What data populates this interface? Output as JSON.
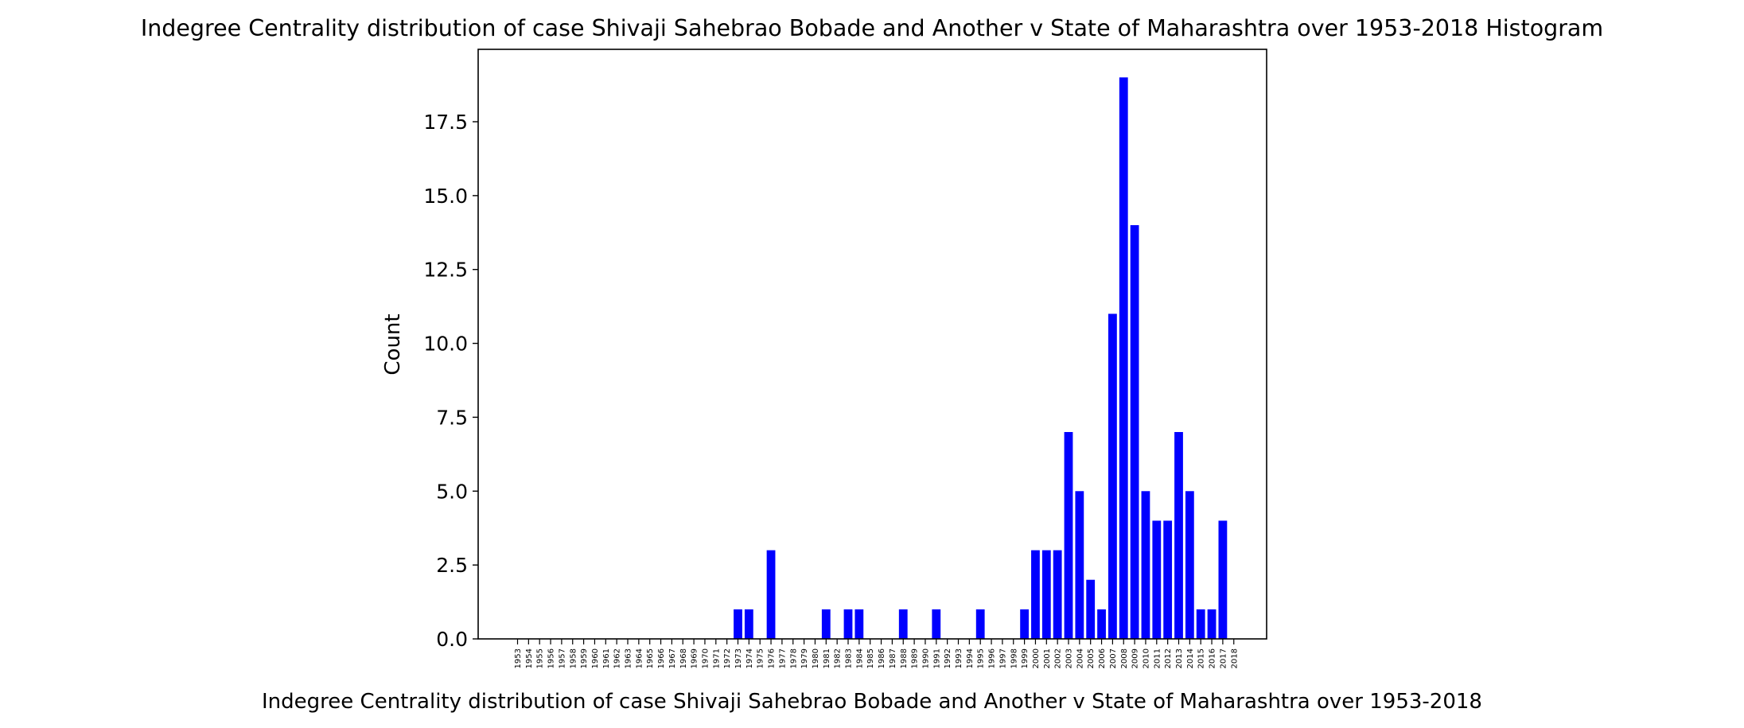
{
  "chart_data": {
    "type": "bar",
    "title": "Indegree Centrality distribution of case Shivaji Sahebrao Bobade and Another v State of Maharashtra over 1953-2018 Histogram",
    "xlabel": "Indegree Centrality distribution of case Shivaji Sahebrao Bobade and Another v State of Maharashtra over 1953-2018",
    "ylabel": "Count",
    "ylim": [
      0,
      19.95
    ],
    "yticks": [
      "0.0",
      "2.5",
      "5.0",
      "7.5",
      "10.0",
      "12.5",
      "15.0",
      "17.5"
    ],
    "grid": false,
    "bar_color": "#0000ff",
    "categories": [
      "1953",
      "1954",
      "1955",
      "1956",
      "1957",
      "1958",
      "1959",
      "1960",
      "1961",
      "1962",
      "1963",
      "1964",
      "1965",
      "1966",
      "1967",
      "1968",
      "1969",
      "1970",
      "1971",
      "1972",
      "1973",
      "1974",
      "1975",
      "1976",
      "1977",
      "1978",
      "1979",
      "1980",
      "1981",
      "1982",
      "1983",
      "1984",
      "1985",
      "1986",
      "1987",
      "1988",
      "1989",
      "1990",
      "1991",
      "1992",
      "1993",
      "1994",
      "1995",
      "1996",
      "1997",
      "1998",
      "1999",
      "2000",
      "2001",
      "2002",
      "2003",
      "2004",
      "2005",
      "2006",
      "2007",
      "2008",
      "2009",
      "2010",
      "2011",
      "2012",
      "2013",
      "2014",
      "2015",
      "2016",
      "2017",
      "2018"
    ],
    "values": [
      0,
      0,
      0,
      0,
      0,
      0,
      0,
      0,
      0,
      0,
      0,
      0,
      0,
      0,
      0,
      0,
      0,
      0,
      0,
      0,
      1,
      1,
      0,
      3,
      0,
      0,
      0,
      0,
      1,
      0,
      1,
      1,
      0,
      0,
      0,
      1,
      0,
      0,
      1,
      0,
      0,
      0,
      1,
      0,
      0,
      0,
      1,
      3,
      3,
      3,
      7,
      5,
      2,
      1,
      11,
      19,
      14,
      5,
      4,
      4,
      7,
      5,
      1,
      1,
      4,
      0
    ]
  }
}
